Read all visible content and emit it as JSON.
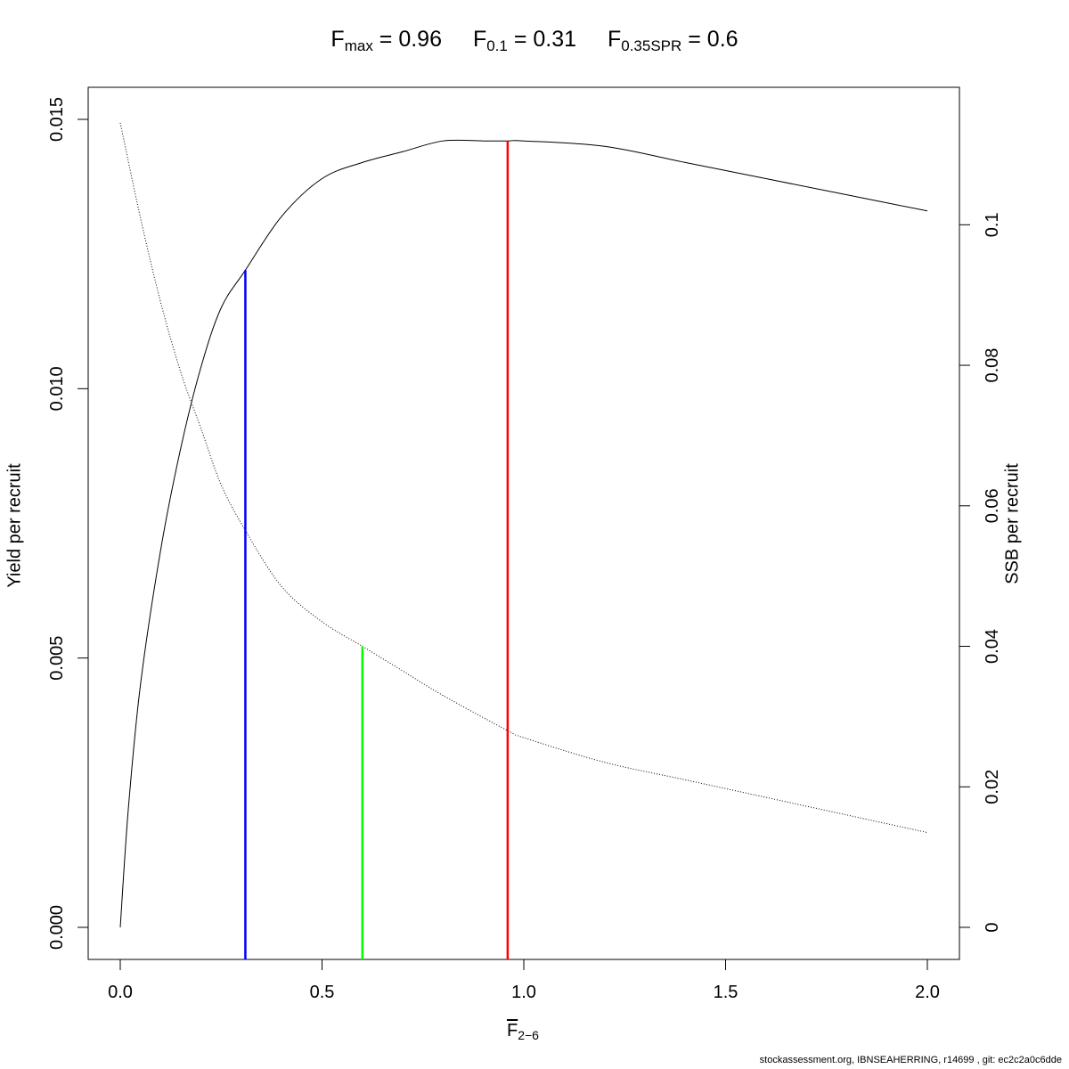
{
  "title": {
    "fmax": {
      "label": "F",
      "sub": "max",
      "value": "= 0.96"
    },
    "f01": {
      "label": "F",
      "sub": "0.1",
      "value": "= 0.31"
    },
    "f035spr": {
      "label": "F",
      "sub": "0.35SPR",
      "value": "= 0.6"
    }
  },
  "footer": "stockassessment.org, IBNSEAHERRING, r14699 , git: ec2c2a0c6dde",
  "chart_data": {
    "type": "line",
    "xlabel": {
      "main": "F",
      "sub": "2−6"
    },
    "ylabel": "Yield per recruit",
    "y2label": "SSB per recruit",
    "xlim": [
      0,
      2
    ],
    "ylim": [
      0,
      0.015
    ],
    "y2lim": [
      0,
      0.115
    ],
    "xticks": [
      "0.0",
      "0.5",
      "1.0",
      "1.5",
      "2.0"
    ],
    "xtick_values": [
      0,
      0.5,
      1.0,
      1.5,
      2.0
    ],
    "yticks": [
      "0.000",
      "0.005",
      "0.010",
      "0.015"
    ],
    "ytick_values": [
      0,
      0.005,
      0.01,
      0.015
    ],
    "y2ticks": [
      "0",
      "0.02",
      "0.04",
      "0.06",
      "0.08",
      "0.1"
    ],
    "y2tick_values": [
      0,
      0.02,
      0.04,
      0.06,
      0.08,
      0.1
    ],
    "grid": false,
    "series": [
      {
        "axis": "left",
        "style": "solid",
        "color": "#000000",
        "x": [
          0,
          0.02,
          0.05,
          0.1,
          0.15,
          0.2,
          0.25,
          0.31,
          0.4,
          0.5,
          0.6,
          0.7,
          0.8,
          0.9,
          0.96,
          1.0,
          1.2,
          1.4,
          1.6,
          1.8,
          2.0
        ],
        "y": [
          0,
          0.0022,
          0.0045,
          0.007,
          0.0089,
          0.0104,
          0.0115,
          0.0122,
          0.0132,
          0.0139,
          0.0142,
          0.0144,
          0.0146,
          0.0146,
          0.0146,
          0.0146,
          0.0145,
          0.0142,
          0.0139,
          0.0136,
          0.0133
        ]
      },
      {
        "axis": "right",
        "style": "dotted",
        "color": "#000000",
        "x": [
          0,
          0.05,
          0.1,
          0.15,
          0.2,
          0.25,
          0.31,
          0.4,
          0.5,
          0.6,
          0.7,
          0.8,
          0.96,
          1.0,
          1.2,
          1.4,
          1.6,
          1.8,
          2.0
        ],
        "y": [
          0.1145,
          0.101,
          0.089,
          0.079,
          0.071,
          0.063,
          0.0565,
          0.0485,
          0.0435,
          0.04,
          0.0365,
          0.033,
          0.028,
          0.027,
          0.0235,
          0.021,
          0.0185,
          0.016,
          0.0135
        ]
      }
    ],
    "reference_lines": [
      {
        "x": 0.96,
        "color": "#ff0000",
        "axis": "left",
        "y": 0.0146
      },
      {
        "x": 0.31,
        "color": "#0000ff",
        "axis": "left",
        "y": 0.0122
      },
      {
        "x": 0.6,
        "color": "#00ff00",
        "axis": "right",
        "y": 0.04
      }
    ]
  }
}
